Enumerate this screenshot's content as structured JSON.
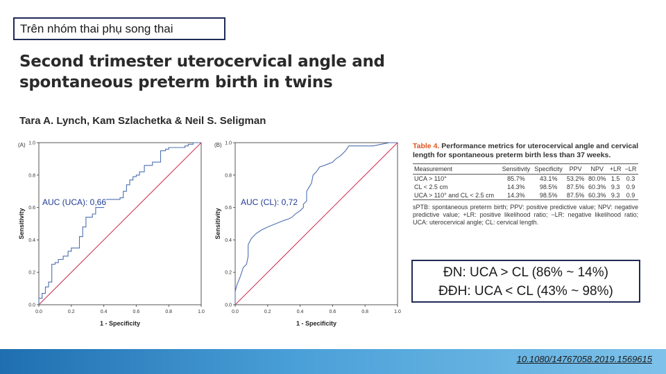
{
  "topic_label": "Trên nhóm thai phụ song thai",
  "paper": {
    "title_line1": "Second trimester uterocervical angle and",
    "title_line2": "spontaneous preterm birth in twins",
    "authors": "Tara A. Lynch, Kam Szlachetka & Neil S. Seligman"
  },
  "chart_data": [
    {
      "type": "line",
      "panel_label": "(A)",
      "xlabel": "1 - Specificity",
      "ylabel": "Sensitivity",
      "xlim": [
        0,
        1
      ],
      "ylim": [
        0,
        1
      ],
      "x_ticks": [
        "0.0",
        "0.2",
        "0.4",
        "0.6",
        "0.8",
        "1.0"
      ],
      "y_ticks": [
        "0.0",
        "0.2",
        "0.4",
        "0.6",
        "0.8",
        "1.0"
      ],
      "annotation": "AUC (UCA): 0,66",
      "grid": false,
      "series": [
        {
          "x": [
            0,
            0,
            0.02,
            0.02,
            0.04,
            0.04,
            0.06,
            0.06,
            0.08,
            0.08,
            0.1,
            0.1,
            0.12,
            0.12,
            0.15,
            0.15,
            0.18,
            0.18,
            0.2,
            0.2,
            0.25,
            0.25,
            0.27,
            0.27,
            0.29,
            0.29,
            0.33,
            0.33,
            0.35,
            0.35,
            0.4,
            0.4,
            0.5,
            0.5,
            0.52,
            0.52,
            0.54,
            0.54,
            0.56,
            0.56,
            0.58,
            0.58,
            0.6,
            0.6,
            0.62,
            0.62,
            0.65,
            0.65,
            0.7,
            0.7,
            0.75,
            0.75,
            0.78,
            0.78,
            0.8,
            0.8,
            0.9,
            0.9,
            0.92,
            0.92,
            0.95,
            0.95,
            1.0
          ],
          "y": [
            0,
            0.04,
            0.04,
            0.07,
            0.07,
            0.11,
            0.11,
            0.14,
            0.14,
            0.25,
            0.25,
            0.26,
            0.26,
            0.28,
            0.28,
            0.3,
            0.3,
            0.33,
            0.33,
            0.35,
            0.35,
            0.42,
            0.42,
            0.48,
            0.48,
            0.54,
            0.54,
            0.56,
            0.56,
            0.6,
            0.6,
            0.65,
            0.65,
            0.66,
            0.66,
            0.7,
            0.7,
            0.74,
            0.74,
            0.77,
            0.77,
            0.79,
            0.79,
            0.8,
            0.8,
            0.82,
            0.82,
            0.86,
            0.86,
            0.88,
            0.88,
            0.95,
            0.95,
            0.96,
            0.96,
            0.97,
            0.97,
            0.98,
            0.98,
            0.99,
            0.99,
            1.0,
            1.0
          ]
        },
        {
          "x": [
            0,
            1
          ],
          "y": [
            0,
            1
          ]
        }
      ]
    },
    {
      "type": "line",
      "panel_label": "(B)",
      "xlabel": "1 - Specificity",
      "ylabel": "Sensitivity",
      "xlim": [
        0,
        1
      ],
      "ylim": [
        0,
        1
      ],
      "x_ticks": [
        "0.0",
        "0.2",
        "0.4",
        "0.6",
        "0.8",
        "1.0"
      ],
      "y_ticks": [
        "0.0",
        "0.2",
        "0.4",
        "0.6",
        "0.8",
        "1.0"
      ],
      "annotation": "AUC (CL): 0,72",
      "grid": false,
      "series": [
        {
          "x": [
            0,
            0,
            0.01,
            0.03,
            0.04,
            0.05,
            0.07,
            0.08,
            0.08,
            0.1,
            0.13,
            0.16,
            0.2,
            0.25,
            0.3,
            0.33,
            0.35,
            0.37,
            0.4,
            0.42,
            0.42,
            0.44,
            0.44,
            0.47,
            0.48,
            0.5,
            0.52,
            0.55,
            0.6,
            0.62,
            0.65,
            0.68,
            0.7,
            0.75,
            0.8,
            0.85,
            0.9,
            0.95,
            1.0
          ],
          "y": [
            0,
            0.08,
            0.12,
            0.17,
            0.2,
            0.23,
            0.25,
            0.3,
            0.37,
            0.41,
            0.44,
            0.46,
            0.48,
            0.5,
            0.52,
            0.53,
            0.54,
            0.56,
            0.58,
            0.6,
            0.62,
            0.64,
            0.7,
            0.75,
            0.8,
            0.82,
            0.85,
            0.86,
            0.88,
            0.9,
            0.92,
            0.95,
            0.98,
            0.98,
            0.98,
            0.98,
            0.99,
            1.0,
            1.0
          ]
        },
        {
          "x": [
            0,
            1
          ],
          "y": [
            0,
            1
          ]
        }
      ]
    }
  ],
  "table": {
    "label": "Table 4.",
    "caption": "Performance metrics for uterocervical angle and cervical length for spontaneous preterm birth less than 37 weeks.",
    "headers": [
      "Measurement",
      "Sensitivity",
      "Specificity",
      "PPV",
      "NPV",
      "+LR",
      "−LR"
    ],
    "rows": [
      [
        "UCA > 110°",
        "85.7%",
        "43.1%",
        "53.2%",
        "80.0%",
        "1.5",
        "0.3"
      ],
      [
        "CL < 2.5 cm",
        "14.3%",
        "98.5%",
        "87.5%",
        "60.3%",
        "9.3",
        "0.9"
      ],
      [
        "UCA > 110° and CL < 2.5 cm",
        "14.3%",
        "98.5%",
        "87.5%",
        "60.3%",
        "9.3",
        "0.9"
      ]
    ],
    "footnote": "sPTB: spontaneous preterm birth; PPV: positive predictive value; NPV: negative predictive value; +LR: positive likelihood ratio; −LR: negative likelihood ratio; UCA: uterocervical angle; CL: cervical length."
  },
  "conclusion": {
    "line1": "ĐN: UCA > CL (86% ~ 14%)",
    "line2": "ĐĐH: UCA < CL (43% ~ 98%)"
  },
  "doi": "10.1080/14767058.2019.1569615",
  "colors": {
    "roc_line": "#4d6fb0",
    "diagonal": "#cc3355",
    "footer_start": "#1f6fb0",
    "footer_end": "#7ec2ea",
    "table_label": "#e0541f"
  }
}
